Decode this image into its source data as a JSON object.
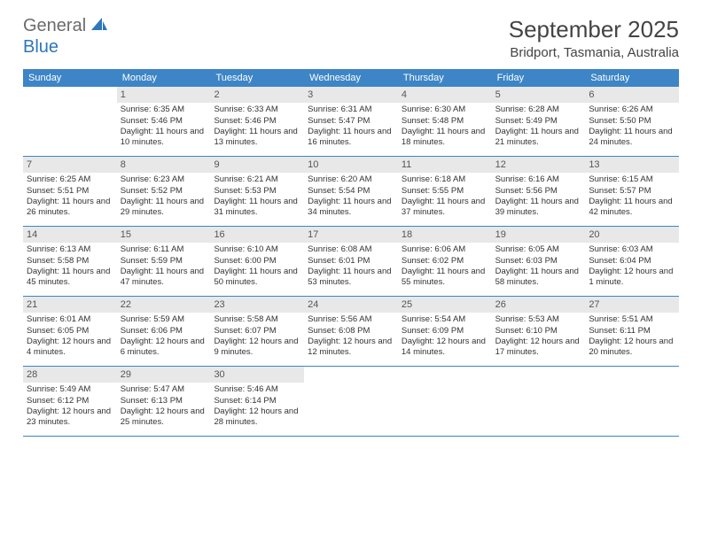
{
  "brand": {
    "part1": "General",
    "part2": "Blue"
  },
  "title": "September 2025",
  "location": "Bridport, Tasmania, Australia",
  "weekdays": [
    "Sunday",
    "Monday",
    "Tuesday",
    "Wednesday",
    "Thursday",
    "Friday",
    "Saturday"
  ],
  "colors": {
    "header_bg": "#3d85c6",
    "header_text": "#ffffff",
    "daynum_bg": "#e8e8e8",
    "border": "#3d85c6",
    "brand_gray": "#6b6b6b",
    "brand_blue": "#2e77b8"
  },
  "weeks": [
    [
      {
        "n": "",
        "sr": "",
        "ss": "",
        "dl": ""
      },
      {
        "n": "1",
        "sr": "Sunrise: 6:35 AM",
        "ss": "Sunset: 5:46 PM",
        "dl": "Daylight: 11 hours and 10 minutes."
      },
      {
        "n": "2",
        "sr": "Sunrise: 6:33 AM",
        "ss": "Sunset: 5:46 PM",
        "dl": "Daylight: 11 hours and 13 minutes."
      },
      {
        "n": "3",
        "sr": "Sunrise: 6:31 AM",
        "ss": "Sunset: 5:47 PM",
        "dl": "Daylight: 11 hours and 16 minutes."
      },
      {
        "n": "4",
        "sr": "Sunrise: 6:30 AM",
        "ss": "Sunset: 5:48 PM",
        "dl": "Daylight: 11 hours and 18 minutes."
      },
      {
        "n": "5",
        "sr": "Sunrise: 6:28 AM",
        "ss": "Sunset: 5:49 PM",
        "dl": "Daylight: 11 hours and 21 minutes."
      },
      {
        "n": "6",
        "sr": "Sunrise: 6:26 AM",
        "ss": "Sunset: 5:50 PM",
        "dl": "Daylight: 11 hours and 24 minutes."
      }
    ],
    [
      {
        "n": "7",
        "sr": "Sunrise: 6:25 AM",
        "ss": "Sunset: 5:51 PM",
        "dl": "Daylight: 11 hours and 26 minutes."
      },
      {
        "n": "8",
        "sr": "Sunrise: 6:23 AM",
        "ss": "Sunset: 5:52 PM",
        "dl": "Daylight: 11 hours and 29 minutes."
      },
      {
        "n": "9",
        "sr": "Sunrise: 6:21 AM",
        "ss": "Sunset: 5:53 PM",
        "dl": "Daylight: 11 hours and 31 minutes."
      },
      {
        "n": "10",
        "sr": "Sunrise: 6:20 AM",
        "ss": "Sunset: 5:54 PM",
        "dl": "Daylight: 11 hours and 34 minutes."
      },
      {
        "n": "11",
        "sr": "Sunrise: 6:18 AM",
        "ss": "Sunset: 5:55 PM",
        "dl": "Daylight: 11 hours and 37 minutes."
      },
      {
        "n": "12",
        "sr": "Sunrise: 6:16 AM",
        "ss": "Sunset: 5:56 PM",
        "dl": "Daylight: 11 hours and 39 minutes."
      },
      {
        "n": "13",
        "sr": "Sunrise: 6:15 AM",
        "ss": "Sunset: 5:57 PM",
        "dl": "Daylight: 11 hours and 42 minutes."
      }
    ],
    [
      {
        "n": "14",
        "sr": "Sunrise: 6:13 AM",
        "ss": "Sunset: 5:58 PM",
        "dl": "Daylight: 11 hours and 45 minutes."
      },
      {
        "n": "15",
        "sr": "Sunrise: 6:11 AM",
        "ss": "Sunset: 5:59 PM",
        "dl": "Daylight: 11 hours and 47 minutes."
      },
      {
        "n": "16",
        "sr": "Sunrise: 6:10 AM",
        "ss": "Sunset: 6:00 PM",
        "dl": "Daylight: 11 hours and 50 minutes."
      },
      {
        "n": "17",
        "sr": "Sunrise: 6:08 AM",
        "ss": "Sunset: 6:01 PM",
        "dl": "Daylight: 11 hours and 53 minutes."
      },
      {
        "n": "18",
        "sr": "Sunrise: 6:06 AM",
        "ss": "Sunset: 6:02 PM",
        "dl": "Daylight: 11 hours and 55 minutes."
      },
      {
        "n": "19",
        "sr": "Sunrise: 6:05 AM",
        "ss": "Sunset: 6:03 PM",
        "dl": "Daylight: 11 hours and 58 minutes."
      },
      {
        "n": "20",
        "sr": "Sunrise: 6:03 AM",
        "ss": "Sunset: 6:04 PM",
        "dl": "Daylight: 12 hours and 1 minute."
      }
    ],
    [
      {
        "n": "21",
        "sr": "Sunrise: 6:01 AM",
        "ss": "Sunset: 6:05 PM",
        "dl": "Daylight: 12 hours and 4 minutes."
      },
      {
        "n": "22",
        "sr": "Sunrise: 5:59 AM",
        "ss": "Sunset: 6:06 PM",
        "dl": "Daylight: 12 hours and 6 minutes."
      },
      {
        "n": "23",
        "sr": "Sunrise: 5:58 AM",
        "ss": "Sunset: 6:07 PM",
        "dl": "Daylight: 12 hours and 9 minutes."
      },
      {
        "n": "24",
        "sr": "Sunrise: 5:56 AM",
        "ss": "Sunset: 6:08 PM",
        "dl": "Daylight: 12 hours and 12 minutes."
      },
      {
        "n": "25",
        "sr": "Sunrise: 5:54 AM",
        "ss": "Sunset: 6:09 PM",
        "dl": "Daylight: 12 hours and 14 minutes."
      },
      {
        "n": "26",
        "sr": "Sunrise: 5:53 AM",
        "ss": "Sunset: 6:10 PM",
        "dl": "Daylight: 12 hours and 17 minutes."
      },
      {
        "n": "27",
        "sr": "Sunrise: 5:51 AM",
        "ss": "Sunset: 6:11 PM",
        "dl": "Daylight: 12 hours and 20 minutes."
      }
    ],
    [
      {
        "n": "28",
        "sr": "Sunrise: 5:49 AM",
        "ss": "Sunset: 6:12 PM",
        "dl": "Daylight: 12 hours and 23 minutes."
      },
      {
        "n": "29",
        "sr": "Sunrise: 5:47 AM",
        "ss": "Sunset: 6:13 PM",
        "dl": "Daylight: 12 hours and 25 minutes."
      },
      {
        "n": "30",
        "sr": "Sunrise: 5:46 AM",
        "ss": "Sunset: 6:14 PM",
        "dl": "Daylight: 12 hours and 28 minutes."
      },
      {
        "n": "",
        "sr": "",
        "ss": "",
        "dl": ""
      },
      {
        "n": "",
        "sr": "",
        "ss": "",
        "dl": ""
      },
      {
        "n": "",
        "sr": "",
        "ss": "",
        "dl": ""
      },
      {
        "n": "",
        "sr": "",
        "ss": "",
        "dl": ""
      }
    ]
  ]
}
